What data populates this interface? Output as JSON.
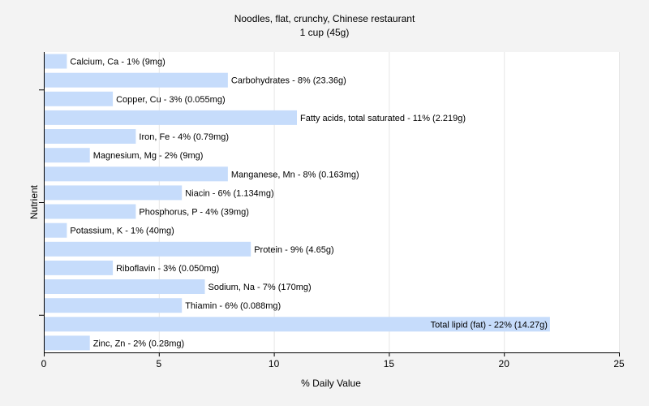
{
  "chart_data": {
    "type": "bar",
    "orientation": "horizontal",
    "title": "Noodles, flat, crunchy, Chinese restaurant",
    "subtitle": "1 cup (45g)",
    "xlabel": "% Daily Value",
    "ylabel": "Nutrient",
    "xlim": [
      0,
      25
    ],
    "xticks": [
      "0",
      "5",
      "10",
      "15",
      "20",
      "25"
    ],
    "grid": true,
    "bar_color": "#c6dcfb",
    "categories": [
      "Calcium, Ca",
      "Carbohydrates",
      "Copper, Cu",
      "Fatty acids, total saturated",
      "Iron, Fe",
      "Magnesium, Mg",
      "Manganese, Mn",
      "Niacin",
      "Phosphorus, P",
      "Potassium, K",
      "Protein",
      "Riboflavin",
      "Sodium, Na",
      "Thiamin",
      "Total lipid (fat)",
      "Zinc, Zn"
    ],
    "values": [
      1,
      8,
      3,
      11,
      4,
      2,
      8,
      6,
      4,
      1,
      9,
      3,
      7,
      6,
      22,
      2
    ],
    "labels": [
      "Calcium, Ca - 1% (9mg)",
      "Carbohydrates - 8% (23.36g)",
      "Copper, Cu - 3% (0.055mg)",
      "Fatty acids, total saturated - 11% (2.219g)",
      "Iron, Fe - 4% (0.79mg)",
      "Magnesium, Mg - 2% (9mg)",
      "Manganese, Mn - 8% (0.163mg)",
      "Niacin - 6% (1.134mg)",
      "Phosphorus, P - 4% (39mg)",
      "Potassium, K - 1% (40mg)",
      "Protein - 9% (4.65g)",
      "Riboflavin - 3% (0.050mg)",
      "Sodium, Na - 7% (170mg)",
      "Thiamin - 6% (0.088mg)",
      "Total lipid (fat) - 22% (14.27g)",
      "Zinc, Zn - 2% (0.28mg)"
    ]
  }
}
